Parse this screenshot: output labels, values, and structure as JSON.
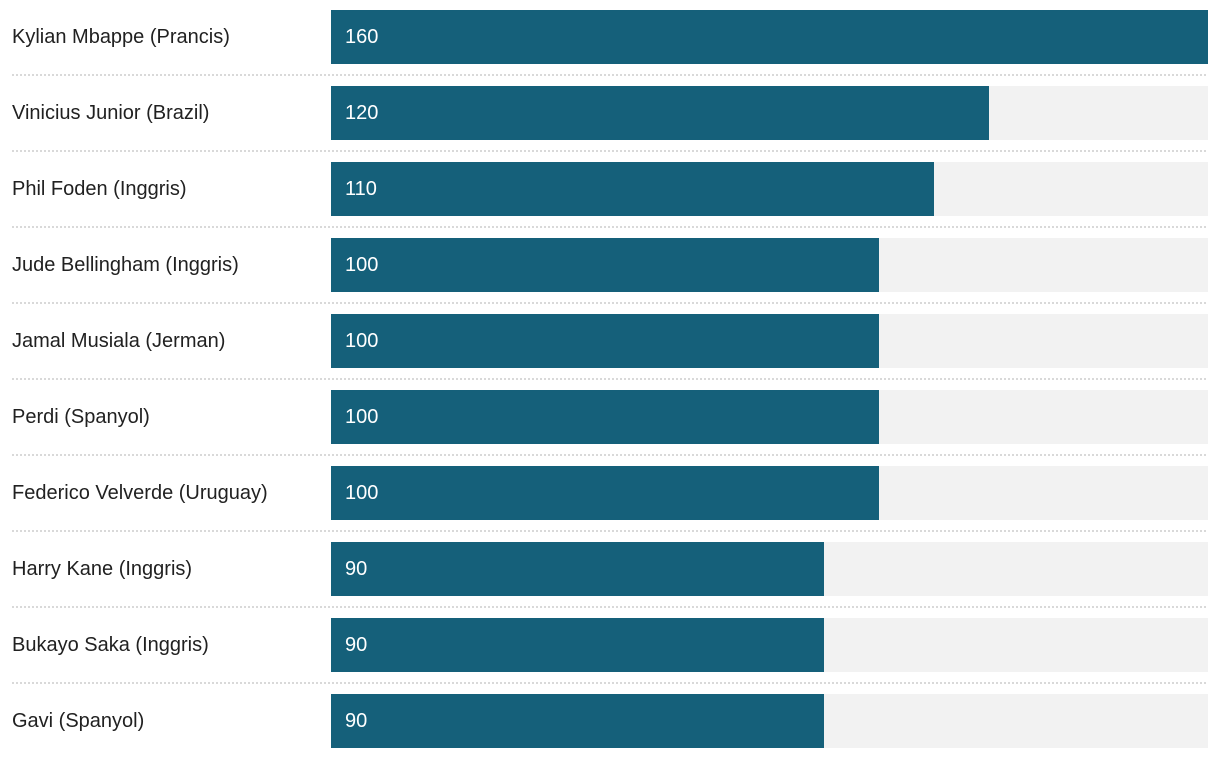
{
  "chart_data": {
    "type": "bar",
    "orientation": "horizontal",
    "title": "",
    "xlabel": "",
    "ylabel": "",
    "xlim": [
      0,
      160
    ],
    "grid": false,
    "legend": false,
    "categories": [
      "Kylian Mbappe (Prancis)",
      "Vinicius Junior (Brazil)",
      "Phil Foden (Inggris)",
      "Jude Bellingham (Inggris)",
      "Jamal Musiala (Jerman)",
      "Perdi (Spanyol)",
      "Federico Velverde (Uruguay)",
      "Harry Kane (Inggris)",
      "Bukayo Saka (Inggris)",
      "Gavi (Spanyol)"
    ],
    "values": [
      160,
      120,
      110,
      100,
      100,
      100,
      100,
      90,
      90,
      90
    ]
  },
  "colors": {
    "bar_fill": "#15607A",
    "bar_track": "#F2F2F2",
    "category_text": "#212121",
    "value_text": "#FFFFFF",
    "separator": "#D9D9D9",
    "background": "#FFFFFF"
  }
}
